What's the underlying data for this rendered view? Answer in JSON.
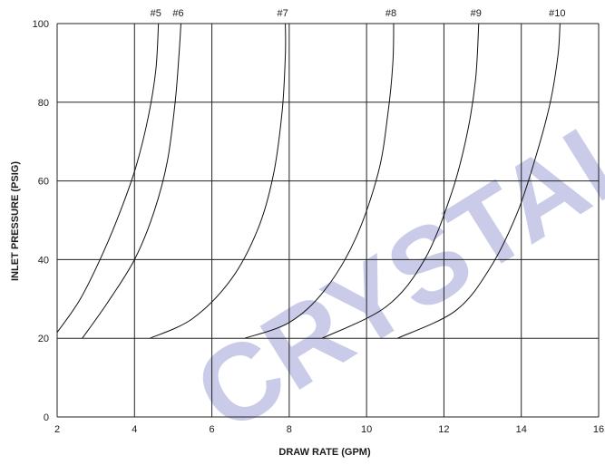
{
  "watermark": "CRYSTAL",
  "chart_data": {
    "type": "line",
    "title": "",
    "xlabel": "DRAW RATE (GPM)",
    "ylabel": "INLET PRESSURE (PSIG)",
    "xlim": [
      2,
      16
    ],
    "ylim": [
      0,
      100
    ],
    "xticks": [
      2,
      4,
      6,
      8,
      10,
      12,
      14,
      16
    ],
    "yticks": [
      0,
      20,
      40,
      60,
      80,
      100
    ],
    "grid": true,
    "series": [
      {
        "name": "#5",
        "points": [
          [
            2.0,
            21.5
          ],
          [
            2.6,
            30
          ],
          [
            3.2,
            42
          ],
          [
            3.7,
            54
          ],
          [
            4.05,
            64
          ],
          [
            4.35,
            76
          ],
          [
            4.55,
            88
          ],
          [
            4.62,
            100
          ]
        ]
      },
      {
        "name": "#6",
        "points": [
          [
            2.65,
            20
          ],
          [
            3.3,
            29
          ],
          [
            4.0,
            40
          ],
          [
            4.5,
            52
          ],
          [
            4.85,
            65
          ],
          [
            5.05,
            80
          ],
          [
            5.15,
            92
          ],
          [
            5.2,
            100
          ]
        ]
      },
      {
        "name": "#7",
        "points": [
          [
            4.4,
            20
          ],
          [
            5.5,
            25
          ],
          [
            6.5,
            35
          ],
          [
            7.2,
            48
          ],
          [
            7.6,
            62
          ],
          [
            7.82,
            78
          ],
          [
            7.9,
            92
          ],
          [
            7.9,
            100
          ]
        ]
      },
      {
        "name": "#8",
        "points": [
          [
            6.85,
            20
          ],
          [
            8.0,
            24
          ],
          [
            8.9,
            32
          ],
          [
            9.7,
            45
          ],
          [
            10.3,
            62
          ],
          [
            10.55,
            77
          ],
          [
            10.68,
            90
          ],
          [
            10.7,
            100
          ]
        ]
      },
      {
        "name": "#9",
        "points": [
          [
            8.85,
            20
          ],
          [
            10.5,
            28
          ],
          [
            11.5,
            40
          ],
          [
            12.2,
            57
          ],
          [
            12.6,
            72
          ],
          [
            12.82,
            86
          ],
          [
            12.9,
            100
          ]
        ]
      },
      {
        "name": "#10",
        "points": [
          [
            10.8,
            20
          ],
          [
            12.3,
            27
          ],
          [
            13.2,
            38
          ],
          [
            13.9,
            52
          ],
          [
            14.4,
            67
          ],
          [
            14.75,
            80
          ],
          [
            14.95,
            92
          ],
          [
            15.0,
            100
          ]
        ]
      }
    ]
  }
}
